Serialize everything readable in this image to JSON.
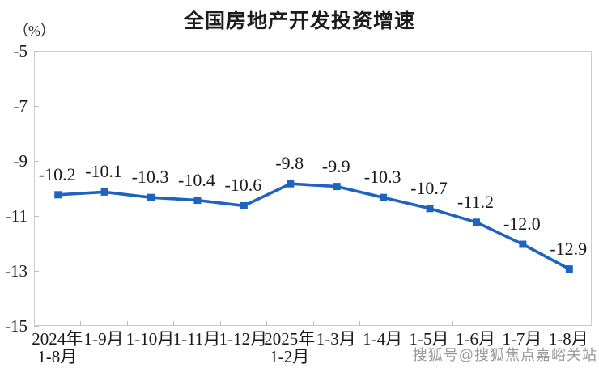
{
  "header": {
    "title": "全国房地产开发投资增速",
    "unit_label": "（%）"
  },
  "watermark": "搜狐号@搜狐焦点嘉峪关站",
  "colors": {
    "line": "#1e63be",
    "marker": "#1e63be",
    "axis": "#cccccc",
    "tick": "#bdbdbd",
    "text": "#1a1a1a",
    "watermark": "#9b9b9b"
  },
  "chart_data": {
    "type": "line",
    "title": "全国房地产开发投资增速",
    "xlabel": "",
    "ylabel": "（%）",
    "categories": [
      [
        "2024年",
        "1-8月"
      ],
      [
        "1-9月"
      ],
      [
        "1-10月"
      ],
      [
        "1-11月"
      ],
      [
        "1-12月"
      ],
      [
        "2025年",
        "1-2月"
      ],
      [
        "1-3月"
      ],
      [
        "1-4月"
      ],
      [
        "1-5月"
      ],
      [
        "1-6月"
      ],
      [
        "1-7月"
      ],
      [
        "1-8月"
      ]
    ],
    "series": [
      {
        "name": "全国房地产开发投资增速",
        "values": [
          -10.2,
          -10.1,
          -10.3,
          -10.4,
          -10.6,
          -9.8,
          -9.9,
          -10.3,
          -10.7,
          -11.2,
          -12.0,
          -12.9
        ]
      }
    ],
    "data_labels": [
      "-10.2",
      "-10.1",
      "-10.3",
      "-10.4",
      "-10.6",
      "-9.8",
      "-9.9",
      "-10.3",
      "-10.7",
      "-11.2",
      "-12.0",
      "-12.9"
    ],
    "ylim": [
      -15,
      -5
    ],
    "yticks": [
      -5,
      -7,
      -9,
      -11,
      -13,
      -15
    ],
    "grid": false,
    "legend": "none",
    "marker": "square",
    "line_style": "solid"
  }
}
